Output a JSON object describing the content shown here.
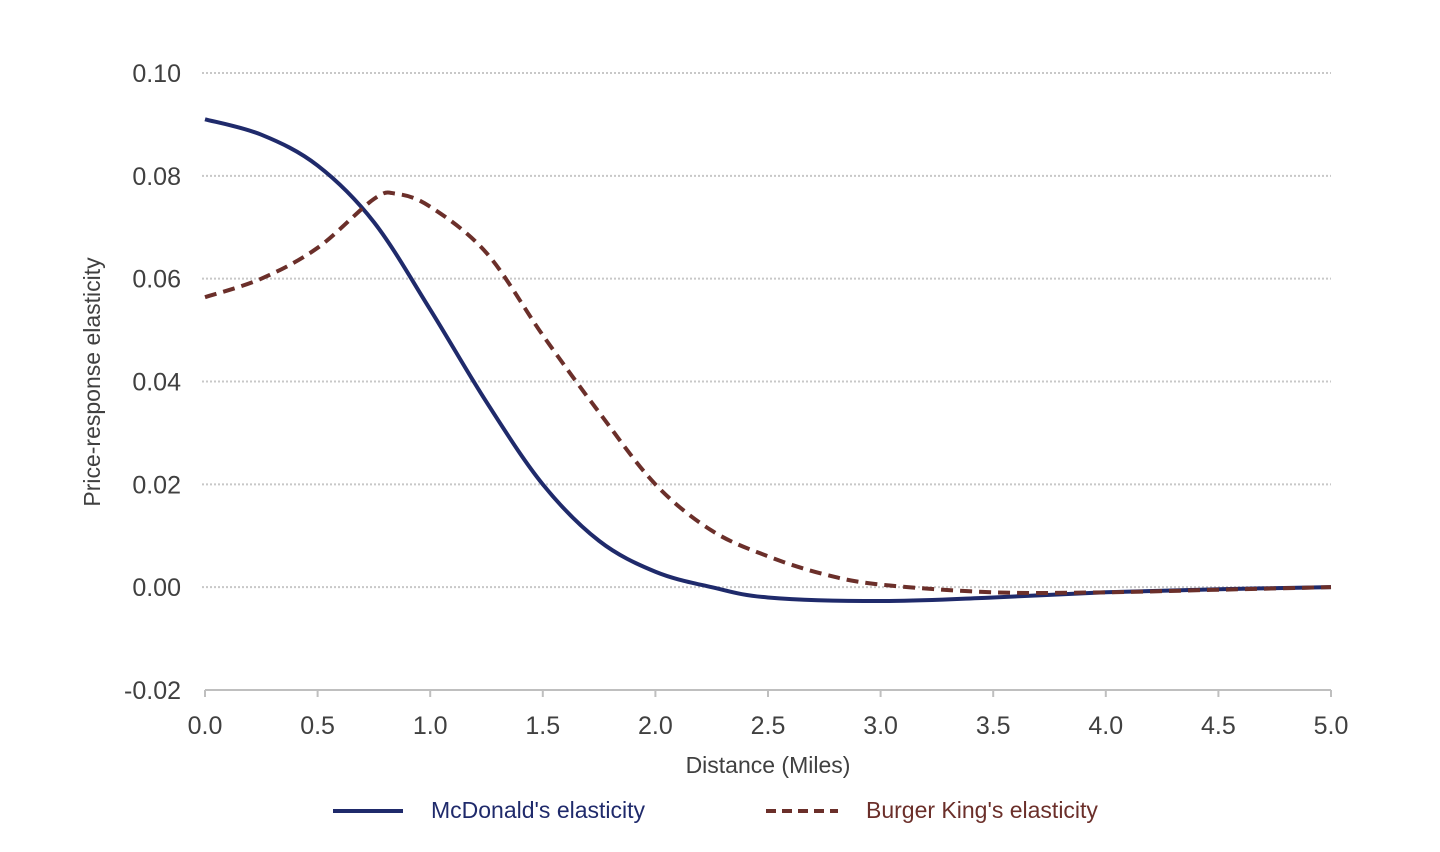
{
  "chart_data": {
    "type": "line",
    "title": "",
    "xlabel": "Distance (Miles)",
    "ylabel": "Price-response elasticity",
    "xlim": [
      0,
      5
    ],
    "ylim": [
      -0.02,
      0.1
    ],
    "xticks": [
      "0.0",
      "0.5",
      "1.0",
      "1.5",
      "2.0",
      "2.5",
      "3.0",
      "3.5",
      "4.0",
      "4.5",
      "5.0"
    ],
    "yticks": [
      "0.10",
      "0.08",
      "0.06",
      "0.04",
      "0.02",
      "0.00",
      "-0.02"
    ],
    "grid": "horizontal dotted",
    "legend_position": "bottom",
    "series": [
      {
        "name": "McDonald's elasticity",
        "color": "#1f2a6b",
        "style": "solid",
        "x": [
          0,
          0.25,
          0.5,
          0.75,
          1.0,
          1.25,
          1.5,
          1.75,
          2.0,
          2.25,
          2.5,
          3.0,
          3.5,
          4.0,
          4.5,
          5.0
        ],
        "y": [
          0.091,
          0.088,
          0.082,
          0.071,
          0.054,
          0.036,
          0.02,
          0.009,
          0.003,
          0.0,
          -0.002,
          -0.0027,
          -0.002,
          -0.001,
          -0.0004,
          0.0
        ]
      },
      {
        "name": "Burger King's elasticity",
        "color": "#6b2f2a",
        "style": "dashed",
        "x": [
          0,
          0.25,
          0.5,
          0.75,
          0.85,
          1.0,
          1.25,
          1.5,
          1.75,
          2.0,
          2.25,
          2.5,
          2.75,
          3.0,
          3.5,
          4.0,
          4.5,
          5.0
        ],
        "y": [
          0.0564,
          0.06,
          0.066,
          0.0755,
          0.0765,
          0.074,
          0.065,
          0.049,
          0.034,
          0.02,
          0.011,
          0.006,
          0.0025,
          0.0005,
          -0.001,
          -0.001,
          -0.0005,
          0.0
        ]
      }
    ]
  }
}
